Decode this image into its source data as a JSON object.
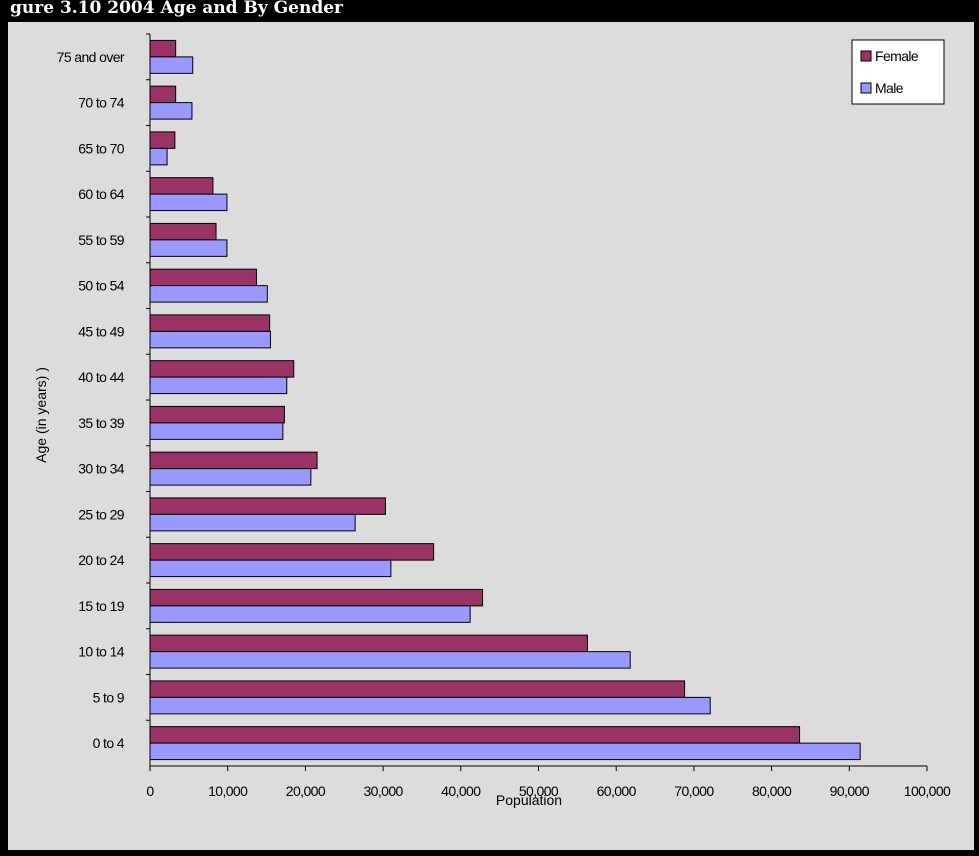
{
  "header": {
    "title": "gure 3.10 2004 Age and By Gender"
  },
  "colors": {
    "female": "#993366",
    "male": "#9999ff",
    "plot_bg": "#dcdcdc",
    "page_bg": "#000000"
  },
  "chart_data": {
    "type": "bar",
    "orientation": "horizontal",
    "title": "",
    "xlabel": "Population",
    "ylabel": "Age (in years)   )",
    "xlim": [
      0,
      100000
    ],
    "x_ticks": [
      "0",
      "10,000",
      "20,000",
      "30,000",
      "40,000",
      "50,000",
      "60,000",
      "70,000",
      "80,000",
      "90,000",
      "100,000"
    ],
    "x_tick_values": [
      0,
      10000,
      20000,
      30000,
      40000,
      50000,
      60000,
      70000,
      80000,
      90000,
      100000
    ],
    "categories": [
      "0 to 4",
      "5 to 9",
      "10 to 14",
      "15 to 19",
      "20 to 24",
      "25 to 29",
      "30 to 34",
      "35 to 39",
      "40 to 44",
      "45 to 49",
      "50 to 54",
      "55 to 59",
      "60 to 64",
      "65 to 70",
      "70 to 74",
      "75 and over"
    ],
    "series": [
      {
        "name": "Female",
        "color": "#993366",
        "values": [
          83600,
          68800,
          56300,
          42800,
          36500,
          30300,
          21500,
          17300,
          18500,
          15400,
          13700,
          8500,
          8100,
          3200,
          3300,
          3300
        ]
      },
      {
        "name": "Male",
        "color": "#9999ff",
        "values": [
          91400,
          72100,
          61800,
          41200,
          31000,
          26400,
          20700,
          17100,
          17600,
          15500,
          15100,
          9900,
          9900,
          2200,
          5400,
          5500
        ]
      }
    ],
    "legend": {
      "position": "top-right",
      "entries": [
        "Female",
        "Male"
      ]
    },
    "grid": false
  }
}
